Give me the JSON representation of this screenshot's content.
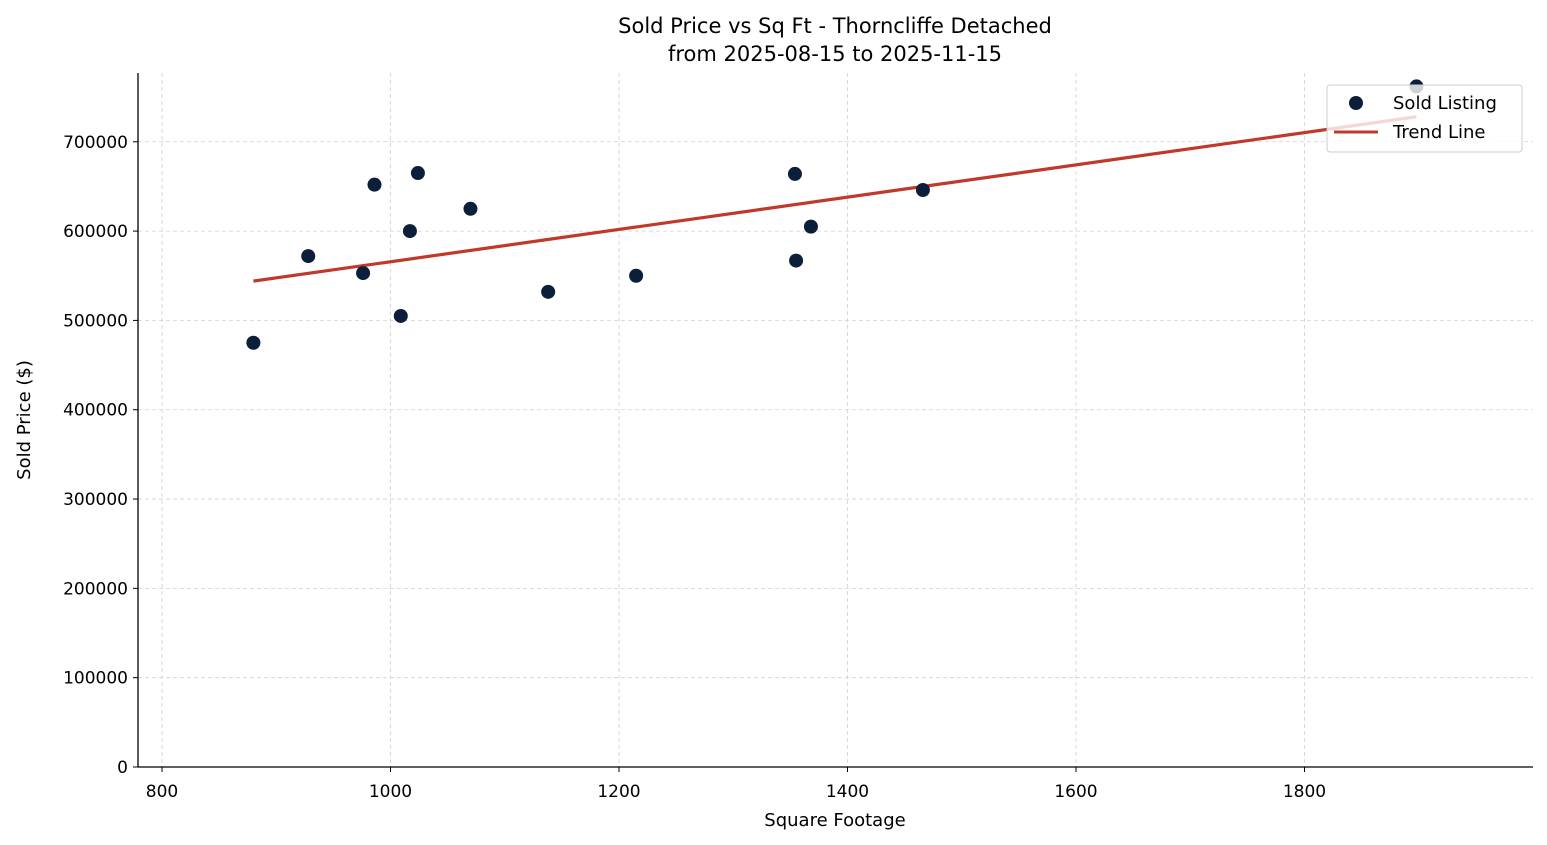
{
  "chart_data": {
    "type": "scatter",
    "title": "Sold Price vs Sq Ft - Thorncliffe Detached",
    "subtitle": "from 2025-08-15 to 2025-11-15",
    "xlabel": "Square Footage",
    "ylabel": "Sold Price ($)",
    "xlim": [
      779,
      2000
    ],
    "ylim": [
      0,
      777000
    ],
    "xticks": [
      800,
      1000,
      1200,
      1400,
      1600,
      1800
    ],
    "yticks": [
      0,
      100000,
      200000,
      300000,
      400000,
      500000,
      600000,
      700000
    ],
    "grid": true,
    "legend": "top-right",
    "colors": {
      "points": "#0b1f3a",
      "trend": "#c0392b"
    },
    "series": [
      {
        "name": "Sold Listing",
        "points": [
          {
            "x": 880,
            "y": 475000
          },
          {
            "x": 928,
            "y": 572000
          },
          {
            "x": 976,
            "y": 553000
          },
          {
            "x": 986,
            "y": 652000
          },
          {
            "x": 1009,
            "y": 505000
          },
          {
            "x": 1017,
            "y": 600000
          },
          {
            "x": 1024,
            "y": 665000
          },
          {
            "x": 1070,
            "y": 625000
          },
          {
            "x": 1138,
            "y": 532000
          },
          {
            "x": 1215,
            "y": 550000
          },
          {
            "x": 1354,
            "y": 664000
          },
          {
            "x": 1355,
            "y": 567000
          },
          {
            "x": 1368,
            "y": 605000
          },
          {
            "x": 1466,
            "y": 646000
          },
          {
            "x": 1898,
            "y": 762000
          }
        ]
      },
      {
        "name": "Trend Line",
        "points": [
          {
            "x": 880,
            "y": 544000
          },
          {
            "x": 1898,
            "y": 728000
          }
        ]
      }
    ]
  }
}
